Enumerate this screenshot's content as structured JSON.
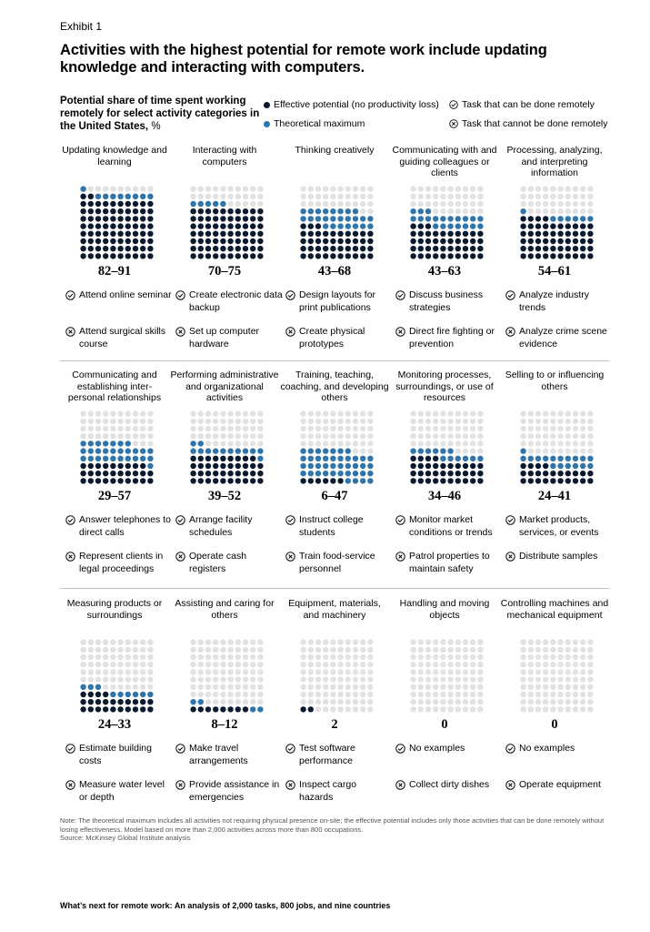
{
  "header": {
    "exhibit": "Exhibit 1",
    "title": "Activities with the highest potential for remote work include updating knowledge and interacting with computers.",
    "subtitle": "Potential share of time spent working remotely for select activity categories in the United States,",
    "subtitle_unit": "%"
  },
  "legend": {
    "effective": "Effective potential (no productivity loss)",
    "theoretical": "Theoretical maximum",
    "can_remote": "Task that can be done remotely",
    "cannot_remote": "Task that cannot be done remotely"
  },
  "colors": {
    "effective": "#0b1a2e",
    "theoretical": "#2f74aa",
    "empty": "#e2e2e2"
  },
  "chart_data": {
    "type": "waffle",
    "units": "%",
    "dots_per_grid": 100,
    "categories": [
      {
        "name": "Updating knowledge and learning",
        "effective": 82,
        "theoretical": 91,
        "range": "82–91",
        "yes": "Attend online seminar",
        "no": "Attend surgical skills course"
      },
      {
        "name": "Interacting with computers",
        "effective": 70,
        "theoretical": 75,
        "range": "70–75",
        "yes": "Create electronic data backup",
        "no": "Set up computer hardware"
      },
      {
        "name": "Thinking creatively",
        "effective": 43,
        "theoretical": 68,
        "range": "43–68",
        "yes": "Design layouts for print publications",
        "no": "Create physical prototypes"
      },
      {
        "name": "Communicating with and guiding colleagues or clients",
        "effective": 43,
        "theoretical": 63,
        "range": "43–63",
        "yes": "Discuss business strategies",
        "no": "Direct fire fighting or prevention"
      },
      {
        "name": "Processing, analyzing, and interpreting information",
        "effective": 54,
        "theoretical": 61,
        "range": "54–61",
        "yes": "Analyze industry trends",
        "no": "Analyze crime scene evidence"
      },
      {
        "name": "Communicating and establishing inter-personal relationships",
        "effective": 29,
        "theoretical": 57,
        "range": "29–57",
        "yes": "Answer telephones to direct calls",
        "no": "Represent clients in legal proceedings"
      },
      {
        "name": "Performing administrative and organizational activities",
        "effective": 39,
        "theoretical": 52,
        "range": "39–52",
        "yes": "Arrange facility schedules",
        "no": "Operate cash registers"
      },
      {
        "name": "Training, teaching, coaching, and developing others",
        "effective": 6,
        "theoretical": 47,
        "range": "6–47",
        "yes": "Instruct college students",
        "no": "Train food-service personnel"
      },
      {
        "name": "Monitoring processes, surroundings, or use of resources",
        "effective": 34,
        "theoretical": 46,
        "range": "34–46",
        "yes": "Monitor market conditions or trends",
        "no": "Patrol properties to maintain safety"
      },
      {
        "name": "Selling to or influencing others",
        "effective": 24,
        "theoretical": 41,
        "range": "24–41",
        "yes": "Market products, services, or events",
        "no": "Distribute samples"
      },
      {
        "name": "Measuring products or surroundings",
        "effective": 24,
        "theoretical": 33,
        "range": "24–33",
        "yes": "Estimate building costs",
        "no": "Measure water level or depth"
      },
      {
        "name": "Assisting and caring for others",
        "effective": 8,
        "theoretical": 12,
        "range": "8–12",
        "yes": "Make travel arrangements",
        "no": "Provide assistance in emergencies"
      },
      {
        "name": "Equipment, materials, and machinery",
        "effective": 2,
        "theoretical": 2,
        "range": "2",
        "yes": "Test software performance",
        "no": "Inspect cargo hazards"
      },
      {
        "name": "Handling and moving objects",
        "effective": 0,
        "theoretical": 0,
        "range": "0",
        "yes": "No examples",
        "no": "Collect dirty dishes"
      },
      {
        "name": "Controlling machines and mechanical equipment",
        "effective": 0,
        "theoretical": 0,
        "range": "0",
        "yes": "No examples",
        "no": "Operate equipment"
      }
    ]
  },
  "note": "Note: The theoretical maximum includes all activities not requiring physical presence on-site; the effective potential includes only those activities that can be done remotely without losing effectiveness. Model based on more than 2,000 activities across more than 800 occupations.",
  "source": "Source: McKinsey Global Institute analysis",
  "footer": "What’s next for remote work: An analysis of 2,000 tasks, 800 jobs, and nine countries"
}
